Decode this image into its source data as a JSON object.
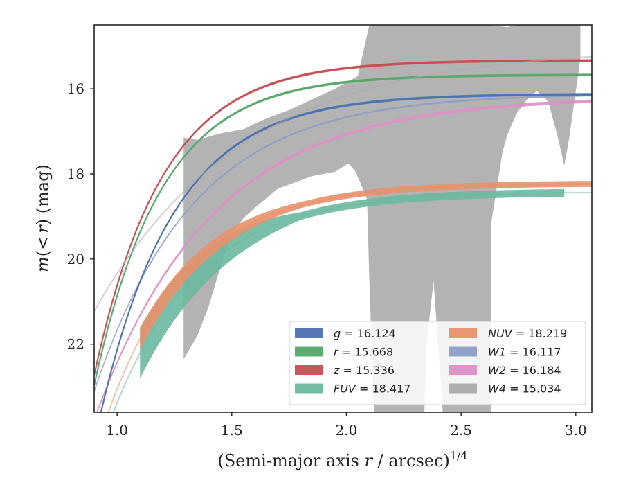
{
  "chart_data": {
    "type": "line",
    "title": "",
    "xlabel": "(Semi-major axis r / arcsec)^1/4",
    "xlabel_parts": {
      "main": "(Semi-major axis ",
      "var": "r",
      "rest": " / arcsec)",
      "sup": "1/4"
    },
    "ylabel": "m(<r) (mag)",
    "ylabel_parts": {
      "m": "m",
      "open": "(",
      "lt": "<",
      "r": "r",
      "close": ")",
      "unit": " (mag)"
    },
    "xlim": [
      0.9,
      3.07
    ],
    "ylim": [
      23.6,
      14.5
    ],
    "y_inverted": true,
    "x_ticks": [
      1.0,
      1.5,
      2.0,
      2.5,
      3.0
    ],
    "x_tick_labels": [
      "1.0",
      "1.5",
      "2.0",
      "2.5",
      "3.0"
    ],
    "y_ticks": [
      16,
      18,
      20,
      22
    ],
    "y_tick_labels": [
      "16",
      "18",
      "20",
      "22"
    ],
    "grid": false,
    "legend_position": "lower-right",
    "legend_columns": 2,
    "series": [
      {
        "key": "g",
        "var": "g",
        "value": "16.124",
        "color": "#4c72b0",
        "model": {
          "m_tot": 16.12,
          "a": 8.2,
          "b": 3.1
        },
        "band_x": [
          0.9,
          3.07
        ],
        "band_width": 0.06
      },
      {
        "key": "r",
        "var": "r",
        "value": "15.668",
        "color": "#55a868",
        "model": {
          "m_tot": 15.67,
          "a": 7.3,
          "b": 3.4
        },
        "band_x": [
          0.9,
          3.07
        ],
        "band_width": 0.06
      },
      {
        "key": "z",
        "var": "z",
        "value": "15.336",
        "color": "#c44e52",
        "model": {
          "m_tot": 15.33,
          "a": 7.4,
          "b": 3.35
        },
        "band_x": [
          0.9,
          3.07
        ],
        "band_width": 0.06
      },
      {
        "key": "fuv",
        "var": "FUV",
        "value": "18.417",
        "color": "#6cb8a0",
        "model": {
          "m_tot": 18.42,
          "a": 6.5,
          "b": 2.7
        },
        "band_x": [
          1.1,
          2.95
        ],
        "band_width_start": 1.2,
        "band_width_end": 0.18
      },
      {
        "key": "nuv",
        "var": "NUV",
        "value": "18.219",
        "color": "#e8906c",
        "model": {
          "m_tot": 18.22,
          "a": 6.4,
          "b": 2.8
        },
        "band_x": [
          1.1,
          3.07
        ],
        "band_width_start": 0.5,
        "band_width_end": 0.14
      },
      {
        "key": "w1",
        "var": "W1",
        "value": "16.117",
        "color": "#8c9ec8",
        "model": {
          "m_tot": 16.11,
          "a": 7.0,
          "b": 2.3
        },
        "band_x": [
          0.9,
          3.07
        ],
        "band_width": 0.04
      },
      {
        "key": "w2",
        "var": "W2",
        "value": "16.184",
        "color": "#dd8fc4",
        "model": {
          "m_tot": 16.18,
          "a": 7.6,
          "b": 1.95
        },
        "band_x": [
          0.9,
          3.07
        ],
        "band_width": 0.08
      },
      {
        "key": "w4",
        "var": "W4",
        "value": "15.034",
        "color": "#aaaaaa",
        "model": {
          "m_tot": 15.03,
          "a": 6.2,
          "b": 1.55
        },
        "band_x": [
          1.29,
          3.02
        ],
        "band_width": 2.0
      }
    ],
    "w4_band": {
      "upper": [
        [
          1.29,
          17.15
        ],
        [
          1.35,
          17.2
        ],
        [
          1.45,
          17.05
        ],
        [
          1.55,
          16.95
        ],
        [
          1.65,
          16.7
        ],
        [
          1.75,
          16.5
        ],
        [
          1.85,
          16.25
        ],
        [
          1.95,
          16.0
        ],
        [
          2.05,
          15.7
        ],
        [
          2.1,
          14.5
        ],
        [
          2.25,
          14.5
        ],
        [
          2.45,
          14.5
        ],
        [
          2.55,
          14.5
        ],
        [
          2.62,
          14.5
        ],
        [
          2.7,
          14.55
        ],
        [
          2.75,
          14.5
        ],
        [
          2.85,
          14.5
        ],
        [
          3.02,
          14.5
        ]
      ],
      "lower": [
        [
          3.02,
          15.3
        ],
        [
          2.97,
          17.2
        ],
        [
          2.95,
          17.8
        ],
        [
          2.92,
          17.1
        ],
        [
          2.88,
          16.3
        ],
        [
          2.83,
          16.05
        ],
        [
          2.78,
          16.3
        ],
        [
          2.74,
          16.6
        ],
        [
          2.7,
          17.1
        ],
        [
          2.68,
          17.5
        ],
        [
          2.63,
          19.2
        ],
        [
          2.63,
          23.6
        ],
        [
          2.58,
          23.6
        ],
        [
          2.42,
          23.6
        ],
        [
          2.38,
          20.5
        ],
        [
          2.35,
          22.0
        ],
        [
          2.34,
          23.6
        ],
        [
          2.25,
          23.6
        ],
        [
          2.12,
          23.6
        ],
        [
          2.1,
          20.5
        ],
        [
          2.09,
          18.6
        ],
        [
          2.06,
          18.2
        ],
        [
          2.04,
          17.95
        ],
        [
          2.01,
          17.75
        ],
        [
          1.95,
          17.95
        ],
        [
          1.85,
          18.05
        ],
        [
          1.75,
          18.25
        ],
        [
          1.7,
          18.35
        ],
        [
          1.6,
          18.8
        ],
        [
          1.55,
          19.05
        ],
        [
          1.5,
          19.4
        ],
        [
          1.45,
          20.2
        ],
        [
          1.4,
          21.1
        ],
        [
          1.35,
          21.8
        ],
        [
          1.29,
          22.35
        ]
      ]
    }
  }
}
